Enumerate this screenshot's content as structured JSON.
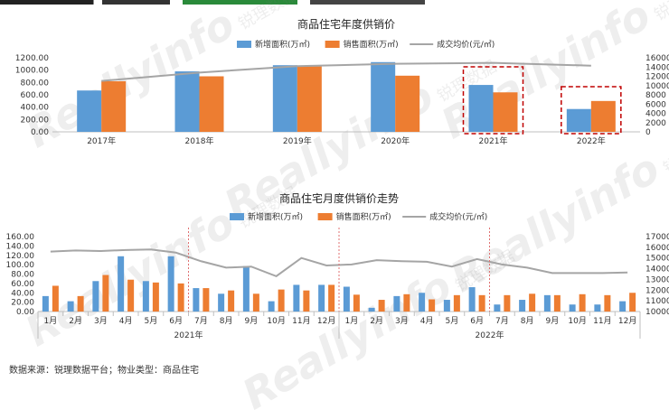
{
  "top_text": "",
  "watermark": {
    "text": "Reallyinfo",
    "sub": "锐理数据"
  },
  "source_note": "数据来源：锐理数据平台；物业类型：商品住宅",
  "colors": {
    "new": "#5b9bd5",
    "sale": "#ed7d31",
    "price": "#a5a5a5",
    "highlight": "#c00000",
    "grid": "#e0e0e0"
  },
  "chart_data": [
    {
      "type": "bar",
      "title": "商品住宅年度供销价",
      "categories": [
        "2017年",
        "2018年",
        "2019年",
        "2020年",
        "2021年",
        "2022年"
      ],
      "series": [
        {
          "name": "新增面积(万㎡)",
          "type": "bar",
          "axis": "left",
          "values": [
            670,
            980,
            1080,
            1130,
            760,
            370
          ]
        },
        {
          "name": "销售面积(万㎡)",
          "type": "bar",
          "axis": "left",
          "values": [
            820,
            900,
            1060,
            910,
            640,
            500
          ]
        },
        {
          "name": "成交均价(元/㎡)",
          "type": "line",
          "axis": "right",
          "values": [
            11000,
            12800,
            14200,
            14700,
            14900,
            14300
          ]
        }
      ],
      "left_ticks": [
        "0.00",
        "200.00",
        "400.00",
        "600.00",
        "800.00",
        "1000.00",
        "1200.00"
      ],
      "right_ticks": [
        "0",
        "2000",
        "4000",
        "6000",
        "8000",
        "10000",
        "12000",
        "14000",
        "16000"
      ],
      "ylim": [
        0,
        1200
      ],
      "y2lim": [
        0,
        16000
      ],
      "highlighted": [
        "2021年",
        "2022年"
      ]
    },
    {
      "type": "bar",
      "title": "商品住宅月度供销价走势",
      "categories": [
        "1月",
        "2月",
        "3月",
        "4月",
        "5月",
        "6月",
        "7月",
        "8月",
        "9月",
        "10月",
        "11月",
        "12月",
        "1月",
        "2月",
        "3月",
        "4月",
        "5月",
        "6月",
        "7月",
        "8月",
        "9月",
        "10月",
        "11月",
        "12月"
      ],
      "groups": [
        {
          "label": "2021年",
          "count": 12
        },
        {
          "label": "2022年",
          "count": 12
        }
      ],
      "series": [
        {
          "name": "新增面积(万㎡)",
          "type": "bar",
          "axis": "left",
          "values": [
            33,
            22,
            65,
            118,
            65,
            118,
            50,
            38,
            97,
            22,
            57,
            57,
            53,
            8,
            33,
            40,
            25,
            52,
            15,
            25,
            35,
            15,
            15,
            22
          ]
        },
        {
          "name": "销售面积(万㎡)",
          "type": "bar",
          "axis": "left",
          "values": [
            55,
            33,
            78,
            68,
            62,
            60,
            50,
            45,
            38,
            47,
            45,
            57,
            36,
            25,
            37,
            26,
            35,
            35,
            35,
            38,
            35,
            37,
            35,
            40
          ]
        },
        {
          "name": "成交均价(元/㎡)",
          "type": "line",
          "axis": "right",
          "values": [
            15600,
            15700,
            15650,
            15750,
            15800,
            15500,
            14700,
            14100,
            14200,
            13300,
            15000,
            14300,
            14400,
            14800,
            14700,
            14650,
            14200,
            14900,
            14400,
            14100,
            13600,
            13600,
            13600,
            13650
          ]
        }
      ],
      "left_ticks": [
        "0.00",
        "20.00",
        "40.00",
        "60.00",
        "80.00",
        "100.00",
        "120.00",
        "140.00",
        "160.00"
      ],
      "right_ticks": [
        "10000",
        "11000",
        "12000",
        "13000",
        "14000",
        "15000",
        "16000",
        "17000"
      ],
      "ylim": [
        0,
        160
      ],
      "y2lim": [
        10000,
        17000
      ]
    }
  ]
}
